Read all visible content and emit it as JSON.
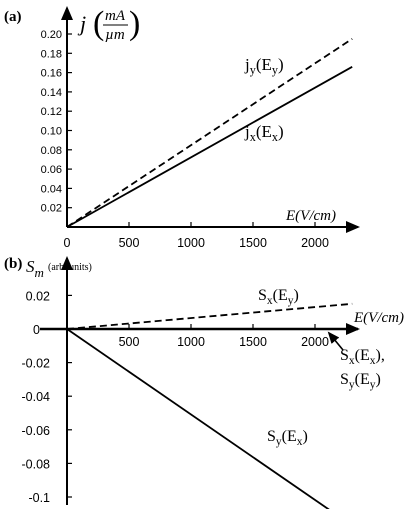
{
  "chart_data": [
    {
      "type": "line",
      "panel_label": "(a)",
      "ylabel": {
        "symbol": "j",
        "unit_num": "mA",
        "unit_den": "µm"
      },
      "xlabel": "E(V/cm)",
      "xlim": [
        0,
        2300
      ],
      "ylim": [
        0,
        0.205
      ],
      "x_ticks": [
        0,
        500,
        1000,
        1500,
        2000
      ],
      "x_tick_labels": [
        "0",
        "500",
        "1000",
        "1500",
        "2000"
      ],
      "y_ticks": [
        0.02,
        0.04,
        0.06,
        0.08,
        0.1,
        0.12,
        0.14,
        0.16,
        0.18,
        0.2
      ],
      "y_tick_labels": [
        "0.02",
        "0.04",
        "0.06",
        "0.08",
        "0.10",
        "0.12",
        "0.14",
        "0.16",
        "0.18",
        "0.20"
      ],
      "grid": false,
      "series": [
        {
          "name": "j_y(E_y)",
          "label": {
            "main": "j",
            "sub": "y",
            "rest": "(E",
            "sub2": "y",
            "end": ")"
          },
          "style": "dashed",
          "x": [
            0,
            2300
          ],
          "y": [
            0.0,
            0.195
          ]
        },
        {
          "name": "j_x(E_x)",
          "label": {
            "main": "j",
            "sub": "x",
            "rest": "(E",
            "sub2": "x",
            "end": ")"
          },
          "style": "solid",
          "x": [
            0,
            2300
          ],
          "y": [
            0.0,
            0.166
          ]
        }
      ]
    },
    {
      "type": "line",
      "panel_label": "(b)",
      "ylabel": {
        "symbol": "S",
        "sub": "m",
        "unit": "(arb. units)"
      },
      "xlabel": "E(V/cm)",
      "xlim": [
        0,
        2300
      ],
      "ylim": [
        -0.12,
        0.03
      ],
      "x_ticks": [
        0,
        500,
        1000,
        1500,
        2000
      ],
      "x_tick_labels": [
        "0",
        "500",
        "1000",
        "1500",
        "2000"
      ],
      "y_ticks": [
        0.02,
        0,
        -0.02,
        -0.04,
        -0.06,
        -0.08,
        -0.1
      ],
      "y_tick_labels": [
        "0.02",
        "0",
        "-0.02",
        "-0.04",
        "-0.06",
        "-0.08",
        "-0.1"
      ],
      "grid": false,
      "series": [
        {
          "name": "S_x(E_y)",
          "label": {
            "main": "S",
            "sub": "x",
            "rest": "(E",
            "sub2": "y",
            "end": ")"
          },
          "style": "dashed",
          "x": [
            0,
            2300
          ],
          "y": [
            0.0,
            0.015
          ]
        },
        {
          "name": "S_x(E_x), S_y(E_y)",
          "label": {
            "main": "S",
            "sub": "x",
            "rest": "(E",
            "sub2": "x",
            "end": "),",
            "line2": {
              "main": "S",
              "sub": "y",
              "rest": "(E",
              "sub2": "y",
              "end": ")"
            }
          },
          "style": "dashed",
          "x": [
            0,
            2300
          ],
          "y": [
            0.0,
            0.0
          ]
        },
        {
          "name": "S_y(E_x)",
          "label": {
            "main": "S",
            "sub": "y",
            "rest": "(E",
            "sub2": "x",
            "end": ")"
          },
          "style": "solid",
          "x": [
            0,
            2300
          ],
          "y": [
            0.0,
            -0.117
          ]
        }
      ]
    }
  ]
}
